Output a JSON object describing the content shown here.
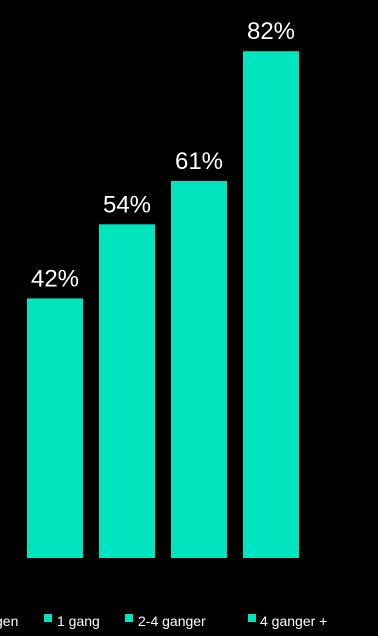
{
  "chart_data": {
    "type": "bar",
    "categories": [
      "Ingen",
      "1 gang",
      "2-4 ganger",
      "4 ganger +"
    ],
    "values": [
      42,
      54,
      61,
      82
    ],
    "value_labels": [
      "42%",
      "54%",
      "61%",
      "82%"
    ],
    "unit": "%",
    "title": "",
    "xlabel": "",
    "ylabel": "",
    "ylim": [
      0,
      100
    ],
    "grid": false,
    "legend": {
      "placement": "bottom",
      "entries": [
        "Ingen",
        "1 gang",
        "2-4 ganger",
        "4 ganger +"
      ],
      "visible_text": {
        "first": "gen",
        "second": "1 gang",
        "third": "2-4 ganger",
        "fourth": "4 ganger +"
      }
    },
    "colors": {
      "bar": "#00E5BE",
      "background": "#000000",
      "text": "#FFFFFF"
    }
  }
}
